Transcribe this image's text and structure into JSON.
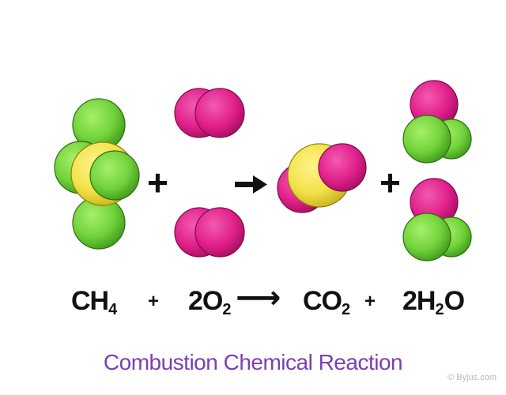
{
  "colors": {
    "carbon": "#f2e24a",
    "hydrogen": "#7bd63c",
    "oxygen": "#e4218f",
    "caption": "#7b3fb3",
    "text": "#111111"
  },
  "equation": {
    "ch4": {
      "main": "CH",
      "sub": "4"
    },
    "plus1": "+",
    "o2": {
      "coef": "2O",
      "sub": "2"
    },
    "arrow": "⟶",
    "co2": {
      "main": "CO",
      "sub": "2"
    },
    "plus2": "+",
    "h2o": {
      "coef": "2H",
      "sub": "2",
      "tail": "O"
    }
  },
  "caption": "Combustion Chemical Reaction",
  "credit": "© Byjus.com"
}
